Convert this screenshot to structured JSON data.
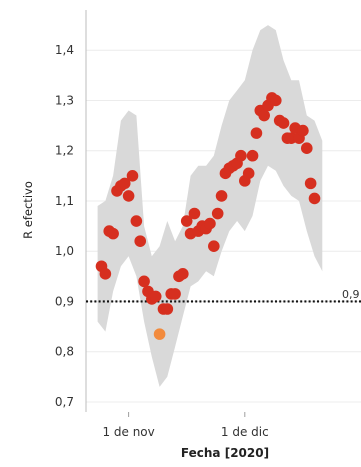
{
  "chart_data": {
    "type": "scatter",
    "xlabel": "Fecha [2020]",
    "ylabel": "R efectivo",
    "x_tick_labels": [
      "1 de nov",
      "1 de dic"
    ],
    "x_ticks": [
      "2020-11-01",
      "2020-12-01"
    ],
    "xlim": [
      "2020-10-21",
      "2020-12-31"
    ],
    "ylim": [
      0.68,
      1.48
    ],
    "y_ticks": [
      0.7,
      0.8,
      0.9,
      1.0,
      1.1,
      1.2,
      1.3,
      1.4
    ],
    "y_tick_labels": [
      "0,7",
      "0,8",
      "0,9",
      "1,0",
      "1,1",
      "1,2",
      "1,3",
      "1,4"
    ],
    "reference_line": {
      "y": 0.9,
      "label": "0,9",
      "style": "dotted"
    },
    "grid": "horizontal",
    "band_color": "#d9d9d9",
    "point_color": "#d62f1f",
    "highlight_color": "#f28a3c",
    "series": [
      {
        "kind": "points",
        "values": [
          {
            "x": "2020-10-25",
            "y": 0.97
          },
          {
            "x": "2020-10-26",
            "y": 0.955
          },
          {
            "x": "2020-10-27",
            "y": 1.04
          },
          {
            "x": "2020-10-28",
            "y": 1.035
          },
          {
            "x": "2020-10-29",
            "y": 1.12
          },
          {
            "x": "2020-10-30",
            "y": 1.13
          },
          {
            "x": "2020-10-31",
            "y": 1.135
          },
          {
            "x": "2020-11-01",
            "y": 1.11
          },
          {
            "x": "2020-11-02",
            "y": 1.15
          },
          {
            "x": "2020-11-03",
            "y": 1.06
          },
          {
            "x": "2020-11-04",
            "y": 1.02
          },
          {
            "x": "2020-11-05",
            "y": 0.94
          },
          {
            "x": "2020-11-06",
            "y": 0.92
          },
          {
            "x": "2020-11-07",
            "y": 0.905
          },
          {
            "x": "2020-11-08",
            "y": 0.91
          },
          {
            "x": "2020-11-10",
            "y": 0.885
          },
          {
            "x": "2020-11-11",
            "y": 0.885
          },
          {
            "x": "2020-11-12",
            "y": 0.915
          },
          {
            "x": "2020-11-13",
            "y": 0.915
          },
          {
            "x": "2020-11-14",
            "y": 0.95
          },
          {
            "x": "2020-11-15",
            "y": 0.955
          },
          {
            "x": "2020-11-16",
            "y": 1.06
          },
          {
            "x": "2020-11-17",
            "y": 1.035
          },
          {
            "x": "2020-11-18",
            "y": 1.075
          },
          {
            "x": "2020-11-19",
            "y": 1.04
          },
          {
            "x": "2020-11-20",
            "y": 1.05
          },
          {
            "x": "2020-11-21",
            "y": 1.045
          },
          {
            "x": "2020-11-22",
            "y": 1.055
          },
          {
            "x": "2020-11-23",
            "y": 1.01
          },
          {
            "x": "2020-11-24",
            "y": 1.075
          },
          {
            "x": "2020-11-25",
            "y": 1.11
          },
          {
            "x": "2020-11-26",
            "y": 1.155
          },
          {
            "x": "2020-11-27",
            "y": 1.165
          },
          {
            "x": "2020-11-28",
            "y": 1.17
          },
          {
            "x": "2020-11-29",
            "y": 1.175
          },
          {
            "x": "2020-11-30",
            "y": 1.19
          },
          {
            "x": "2020-12-01",
            "y": 1.14
          },
          {
            "x": "2020-12-02",
            "y": 1.155
          },
          {
            "x": "2020-12-03",
            "y": 1.19
          },
          {
            "x": "2020-12-04",
            "y": 1.235
          },
          {
            "x": "2020-12-05",
            "y": 1.28
          },
          {
            "x": "2020-12-06",
            "y": 1.27
          },
          {
            "x": "2020-12-07",
            "y": 1.29
          },
          {
            "x": "2020-12-08",
            "y": 1.305
          },
          {
            "x": "2020-12-09",
            "y": 1.3
          },
          {
            "x": "2020-12-10",
            "y": 1.26
          },
          {
            "x": "2020-12-11",
            "y": 1.255
          },
          {
            "x": "2020-12-12",
            "y": 1.225
          },
          {
            "x": "2020-12-13",
            "y": 1.225
          },
          {
            "x": "2020-12-14",
            "y": 1.245
          },
          {
            "x": "2020-12-15",
            "y": 1.225
          },
          {
            "x": "2020-12-16",
            "y": 1.24
          },
          {
            "x": "2020-12-17",
            "y": 1.205
          },
          {
            "x": "2020-12-18",
            "y": 1.135
          },
          {
            "x": "2020-12-19",
            "y": 1.105
          }
        ]
      },
      {
        "kind": "highlight",
        "values": [
          {
            "x": "2020-11-09",
            "y": 0.835
          }
        ]
      },
      {
        "kind": "band",
        "values": [
          {
            "x": "2020-10-24",
            "low": 0.86,
            "high": 1.09
          },
          {
            "x": "2020-10-26",
            "low": 0.84,
            "high": 1.1
          },
          {
            "x": "2020-10-28",
            "low": 0.92,
            "high": 1.15
          },
          {
            "x": "2020-10-30",
            "low": 0.97,
            "high": 1.26
          },
          {
            "x": "2020-11-01",
            "low": 0.99,
            "high": 1.28
          },
          {
            "x": "2020-11-03",
            "low": 0.95,
            "high": 1.27
          },
          {
            "x": "2020-11-05",
            "low": 0.86,
            "high": 1.05
          },
          {
            "x": "2020-11-07",
            "low": 0.79,
            "high": 0.99
          },
          {
            "x": "2020-11-09",
            "low": 0.73,
            "high": 1.01
          },
          {
            "x": "2020-11-11",
            "low": 0.75,
            "high": 1.06
          },
          {
            "x": "2020-11-13",
            "low": 0.81,
            "high": 1.02
          },
          {
            "x": "2020-11-15",
            "low": 0.87,
            "high": 1.05
          },
          {
            "x": "2020-11-17",
            "low": 0.93,
            "high": 1.15
          },
          {
            "x": "2020-11-19",
            "low": 0.94,
            "high": 1.17
          },
          {
            "x": "2020-11-21",
            "low": 0.96,
            "high": 1.17
          },
          {
            "x": "2020-11-23",
            "low": 0.95,
            "high": 1.19
          },
          {
            "x": "2020-11-25",
            "low": 1.0,
            "high": 1.25
          },
          {
            "x": "2020-11-27",
            "low": 1.04,
            "high": 1.3
          },
          {
            "x": "2020-11-29",
            "low": 1.06,
            "high": 1.32
          },
          {
            "x": "2020-12-01",
            "low": 1.04,
            "high": 1.34
          },
          {
            "x": "2020-12-03",
            "low": 1.07,
            "high": 1.4
          },
          {
            "x": "2020-12-05",
            "low": 1.14,
            "high": 1.44
          },
          {
            "x": "2020-12-07",
            "low": 1.17,
            "high": 1.45
          },
          {
            "x": "2020-12-09",
            "low": 1.16,
            "high": 1.44
          },
          {
            "x": "2020-12-11",
            "low": 1.13,
            "high": 1.38
          },
          {
            "x": "2020-12-13",
            "low": 1.11,
            "high": 1.34
          },
          {
            "x": "2020-12-15",
            "low": 1.1,
            "high": 1.34
          },
          {
            "x": "2020-12-17",
            "low": 1.04,
            "high": 1.27
          },
          {
            "x": "2020-12-19",
            "low": 0.99,
            "high": 1.26
          },
          {
            "x": "2020-12-21",
            "low": 0.96,
            "high": 1.22
          }
        ]
      }
    ]
  }
}
